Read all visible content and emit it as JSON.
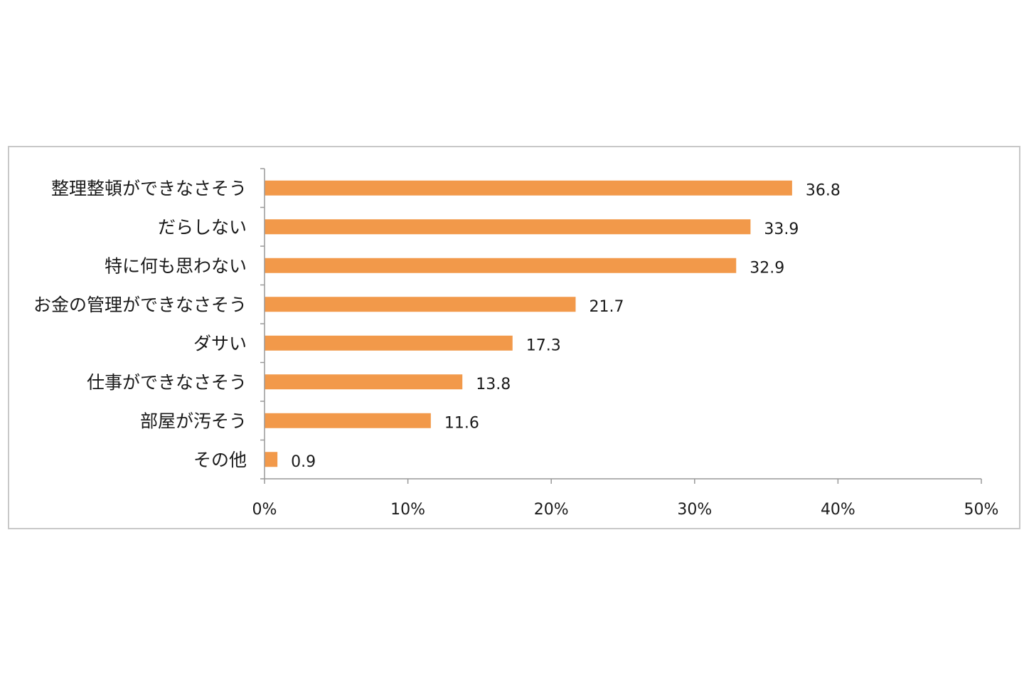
{
  "chart_data": {
    "type": "bar",
    "orientation": "horizontal",
    "categories": [
      "整理整頓ができなさそう",
      "だらしない",
      "特に何も思わない",
      "お金の管理ができなさそう",
      "ダサい",
      "仕事ができなさそう",
      "部屋が汚そう",
      "その他"
    ],
    "values": [
      36.8,
      33.9,
      32.9,
      21.7,
      17.3,
      13.8,
      11.6,
      0.9
    ],
    "value_labels": [
      "36.8",
      "33.9",
      "32.9",
      "21.7",
      "17.3",
      "13.8",
      "11.6",
      "0.9"
    ],
    "xticks": [
      "0%",
      "10%",
      "20%",
      "30%",
      "40%",
      "50%"
    ],
    "xlim": [
      0,
      50
    ],
    "title": "",
    "xlabel": "",
    "ylabel": "",
    "grid": false,
    "bar_color": "#f2994a",
    "axis_color": "#999999"
  }
}
